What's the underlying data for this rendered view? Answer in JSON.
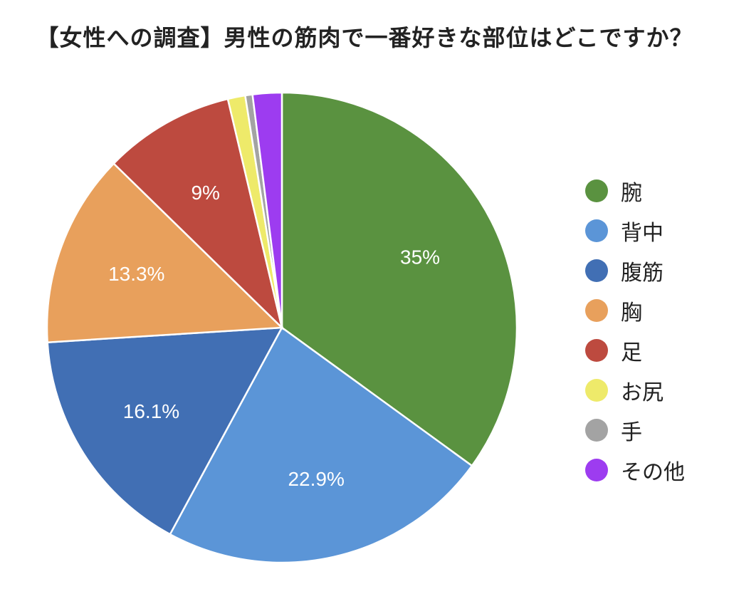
{
  "chart_data": {
    "type": "pie",
    "title": "【女性への調査】男性の筋肉で一番好きな部位はどこですか？",
    "legend_position": "right",
    "categories": [
      "腕",
      "背中",
      "腹筋",
      "胸",
      "足",
      "お尻",
      "手",
      "その他"
    ],
    "values": [
      35,
      22.9,
      16.1,
      13.3,
      9,
      1.2,
      0.5,
      2
    ],
    "data_labels": [
      "35%",
      "22.9%",
      "16.1%",
      "13.3%",
      "9%",
      "",
      "",
      ""
    ],
    "colors": [
      "#5a9240",
      "#5b95d7",
      "#416fb4",
      "#e8a05c",
      "#bd4a3f",
      "#eeea6a",
      "#a3a3a3",
      "#9d3cf0"
    ]
  }
}
